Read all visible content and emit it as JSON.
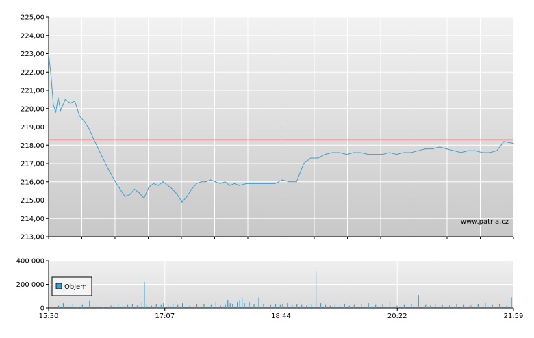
{
  "chart_data": [
    {
      "type": "line",
      "ylim": [
        213.0,
        225.0
      ],
      "y_ticks": [
        "225,00",
        "224,00",
        "223,00",
        "222,00",
        "221,00",
        "220,00",
        "219,00",
        "218,00",
        "217,00",
        "216,00",
        "215,00",
        "214,00",
        "213,00"
      ],
      "reference_line": {
        "value": 218.3,
        "color": "#e03030"
      },
      "watermark": "www.patria.cz",
      "grid": true,
      "series": [
        {
          "color": "#3a9fd0",
          "x": [
            0,
            2,
            4,
            6,
            8,
            10,
            14,
            18,
            22,
            26,
            30,
            34,
            38,
            44,
            50,
            56,
            60,
            64,
            68,
            72,
            76,
            80,
            84,
            88,
            92,
            96,
            100,
            104,
            108,
            112,
            116,
            120,
            124,
            128,
            132,
            136,
            140,
            144,
            148,
            152,
            156,
            160,
            166,
            172,
            178,
            184,
            190,
            196,
            202,
            208,
            214,
            220,
            226,
            232,
            238,
            244,
            250,
            256,
            262,
            268,
            274,
            280,
            286,
            292,
            298,
            304,
            310,
            316,
            322,
            328,
            334,
            340,
            346,
            352,
            358,
            364,
            370,
            376,
            382,
            390
          ],
          "values": [
            223.0,
            221.8,
            220.2,
            219.8,
            220.6,
            219.9,
            220.5,
            220.3,
            220.4,
            219.6,
            219.3,
            218.9,
            218.3,
            217.5,
            216.7,
            216.0,
            215.6,
            215.2,
            215.3,
            215.6,
            215.4,
            215.1,
            215.7,
            215.9,
            215.8,
            216.0,
            215.8,
            215.6,
            215.3,
            214.9,
            215.2,
            215.6,
            215.9,
            216.0,
            216.0,
            216.1,
            216.0,
            215.9,
            216.0,
            215.8,
            215.9,
            215.8,
            215.9,
            215.9,
            215.9,
            215.9,
            215.9,
            216.1,
            216.0,
            216.0,
            217.0,
            217.3,
            217.3,
            217.5,
            217.6,
            217.6,
            217.5,
            217.6,
            217.6,
            217.5,
            217.5,
            217.5,
            217.6,
            217.5,
            217.6,
            217.6,
            217.7,
            217.8,
            217.8,
            217.9,
            217.8,
            217.7,
            217.6,
            217.7,
            217.7,
            217.6,
            217.6,
            217.7,
            218.2,
            218.1
          ]
        }
      ]
    },
    {
      "type": "bar",
      "ylim": [
        0,
        400000
      ],
      "y_ticks": [
        "400 000",
        "200 000",
        "0"
      ],
      "x_ticks": [
        "15:30",
        "17:07",
        "18:44",
        "20:22",
        "21:59"
      ],
      "legend": {
        "entries": [
          "Objem"
        ],
        "placement": "left"
      },
      "grid": true,
      "series": [
        {
          "name": "Objem",
          "color": "#3a9fd0",
          "x": [
            8,
            12,
            16,
            20,
            24,
            28,
            34,
            40,
            46,
            52,
            58,
            62,
            66,
            70,
            74,
            78,
            80,
            82,
            86,
            90,
            94,
            96,
            100,
            104,
            108,
            112,
            118,
            124,
            130,
            136,
            140,
            144,
            148,
            150,
            152,
            154,
            158,
            160,
            162,
            164,
            168,
            172,
            176,
            180,
            186,
            190,
            194,
            196,
            200,
            204,
            208,
            212,
            216,
            220,
            224,
            228,
            232,
            236,
            240,
            244,
            248,
            252,
            256,
            262,
            268,
            274,
            280,
            286,
            292,
            298,
            304,
            310,
            316,
            320,
            324,
            330,
            336,
            342,
            348,
            354,
            360,
            366,
            372,
            378,
            384,
            388
          ],
          "values": [
            20000,
            40000,
            15000,
            35000,
            10000,
            25000,
            60000,
            15000,
            10000,
            20000,
            35000,
            20000,
            25000,
            30000,
            20000,
            50000,
            220000,
            25000,
            20000,
            30000,
            25000,
            40000,
            20000,
            30000,
            25000,
            40000,
            20000,
            30000,
            35000,
            25000,
            45000,
            20000,
            25000,
            70000,
            40000,
            30000,
            50000,
            70000,
            80000,
            40000,
            50000,
            30000,
            90000,
            30000,
            25000,
            35000,
            25000,
            30000,
            40000,
            25000,
            30000,
            25000,
            20000,
            35000,
            310000,
            40000,
            25000,
            20000,
            30000,
            25000,
            35000,
            20000,
            25000,
            30000,
            40000,
            25000,
            30000,
            50000,
            20000,
            25000,
            30000,
            110000,
            25000,
            20000,
            30000,
            25000,
            20000,
            30000,
            25000,
            20000,
            30000,
            40000,
            25000,
            30000,
            20000,
            90000
          ]
        }
      ]
    }
  ]
}
